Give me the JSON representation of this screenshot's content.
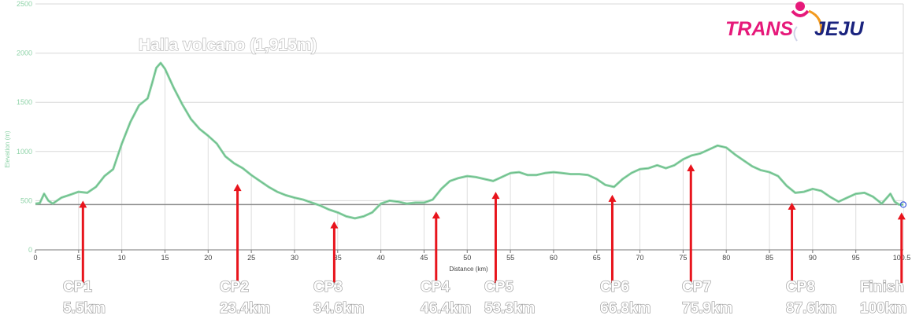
{
  "logo": {
    "part1": "TRANS",
    "part2": "JEJU"
  },
  "chart_data": {
    "type": "area",
    "ylabel": "Elevation (m)",
    "xlabel": "Distance (km)",
    "xlim": [
      0,
      100.5
    ],
    "ylim": [
      0,
      2500
    ],
    "x_ticks": [
      0,
      5,
      10,
      15,
      20,
      25,
      30,
      35,
      40,
      45,
      50,
      55,
      60,
      65,
      70,
      75,
      80,
      85,
      90,
      95
    ],
    "x_end_label": "100.5",
    "y_ticks": [
      0,
      500,
      1000,
      1500,
      2000,
      2500
    ],
    "grid": true,
    "annotation": "Halla volcano (1,915m)",
    "colors": {
      "line": "#8fd3a8",
      "arrow": "#e8141c",
      "logo_pink": "#e6197a",
      "logo_navy": "#1a237e",
      "logo_orange": "#f39a1e"
    },
    "series": [
      {
        "x": [
          0,
          0.5,
          1,
          1.5,
          2,
          3,
          4,
          5,
          6,
          7,
          8,
          9,
          10,
          11,
          12,
          13,
          13.5,
          14,
          14.5,
          15,
          16,
          17,
          18,
          19,
          20,
          21,
          22,
          23,
          24,
          25,
          26,
          27,
          28,
          29,
          30,
          31,
          32,
          33,
          34,
          35,
          36,
          37,
          38,
          39,
          40,
          41,
          42,
          43,
          44,
          45,
          46,
          47,
          48,
          49,
          50,
          51,
          52,
          53,
          54,
          55,
          56,
          57,
          58,
          59,
          60,
          61,
          62,
          63,
          64,
          65,
          66,
          67,
          68,
          69,
          70,
          71,
          72,
          73,
          74,
          75,
          76,
          77,
          78,
          79,
          80,
          81,
          82,
          83,
          84,
          85,
          86,
          87,
          88,
          89,
          90,
          91,
          92,
          93,
          94,
          95,
          96,
          97,
          98,
          98.5,
          99,
          99.5,
          100,
          100.5
        ],
        "y": [
          470,
          475,
          570,
          500,
          470,
          530,
          560,
          590,
          580,
          640,
          750,
          820,
          1080,
          1300,
          1470,
          1540,
          1690,
          1850,
          1900,
          1840,
          1650,
          1480,
          1330,
          1230,
          1160,
          1080,
          950,
          880,
          830,
          760,
          700,
          640,
          590,
          555,
          530,
          510,
          480,
          450,
          410,
          380,
          340,
          320,
          340,
          380,
          470,
          500,
          490,
          470,
          480,
          480,
          510,
          620,
          700,
          730,
          750,
          740,
          720,
          700,
          740,
          780,
          790,
          760,
          760,
          780,
          790,
          780,
          770,
          770,
          760,
          720,
          660,
          640,
          720,
          780,
          820,
          830,
          860,
          830,
          860,
          920,
          960,
          980,
          1020,
          1060,
          1040,
          970,
          910,
          850,
          810,
          790,
          750,
          650,
          580,
          590,
          620,
          600,
          540,
          490,
          530,
          570,
          580,
          540,
          470,
          520,
          570,
          490,
          460,
          460
        ]
      }
    ],
    "checkpoints": [
      {
        "name": "CP1",
        "dist": "5.5km",
        "x": 5.5,
        "elev": 580
      },
      {
        "name": "CP2",
        "dist": "23.4km",
        "x": 23.4,
        "elev": 750
      },
      {
        "name": "CP3",
        "dist": "34.6km",
        "x": 34.6,
        "elev": 370
      },
      {
        "name": "CP4",
        "dist": "46.4km",
        "x": 46.4,
        "elev": 470
      },
      {
        "name": "CP5",
        "dist": "53.3km",
        "x": 53.3,
        "elev": 670
      },
      {
        "name": "CP6",
        "dist": "66.8km",
        "x": 66.8,
        "elev": 640
      },
      {
        "name": "CP7",
        "dist": "75.9km",
        "x": 75.9,
        "elev": 950
      },
      {
        "name": "CP8",
        "dist": "87.6km",
        "x": 87.6,
        "elev": 560
      },
      {
        "name": "Finish",
        "dist": "100km",
        "x": 100.3,
        "elev": 460
      }
    ]
  }
}
